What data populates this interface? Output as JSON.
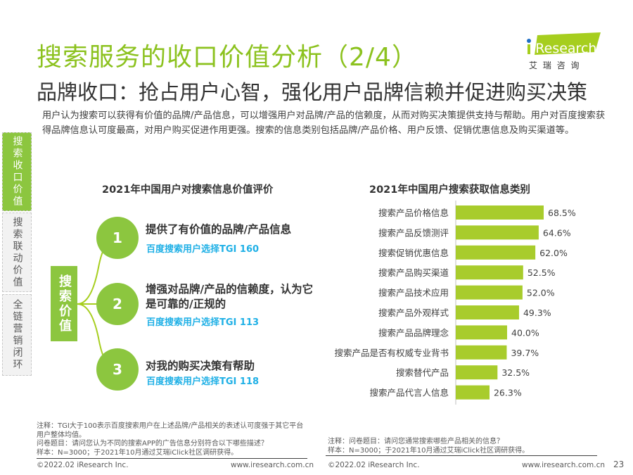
{
  "title": "搜索服务的收口价值分析（2/4）",
  "subtitle": "品牌收口：抢占用户心智，强化用户品牌信赖并促进购买决策",
  "intro": "用户认为搜索可以获得有价值的品牌/产品信息，可以增强用户对品牌/产品的信赖度，从而对购买决策提供支持与帮助。用户对百度搜索获得品牌信息认可度最高，对用户购买促进作用更强。搜索的信息类别包括品牌/产品价格、用户反馈、促销优惠信息及购买渠道等。",
  "logo": {
    "brand": "iResearch",
    "cn": "艾 瑞 咨 询"
  },
  "sidebar": {
    "items": [
      {
        "label": "搜索收口价值",
        "active": true
      },
      {
        "label": "搜索联动价值",
        "active": false
      },
      {
        "label": "全链营销闭环",
        "active": false
      }
    ]
  },
  "left": {
    "title": "2021年中国用户对搜索信息价值评价",
    "center_label": "搜索价值",
    "items": [
      {
        "num": "1",
        "text": "提供了有价值的品牌/产品信息",
        "tgi": "百度搜索用户选择TGI  160"
      },
      {
        "num": "2",
        "text": "增强对品牌/产品的信赖度，认为它是可靠的/正规的",
        "tgi": "百度搜索用户选择TGI  113"
      },
      {
        "num": "3",
        "text": "对我的购买决策有帮助",
        "tgi": "百度搜索用户选择TGI  118"
      }
    ],
    "notes": [
      "注释：TGI大于100表示百度搜索用户在上述品牌/产品相关的表述认可度强于其它平台用户整体均值。",
      "问卷题目：请问您认为不同的搜索APP的广告信息分别符合以下哪些描述？",
      "样本：N=3000；于2021年10月通过艾瑞iClick社区调研获得。"
    ],
    "footer_left": "©2022.02 iResearch Inc.",
    "footer_right": "www.iresearch.com.cn"
  },
  "right": {
    "notes": [
      "注释：问卷题目：请问您通常搜索哪些产品相关的信息？",
      "样本：N=3000；于2021年10月通过艾瑞iClick社区调研获得。"
    ],
    "footer_left": "©2022.02 iResearch Inc.",
    "footer_right": "www.iresearch.com.cn",
    "page_number": "23"
  },
  "colors": {
    "accent": "#8cc63f",
    "tgi": "#1fb0e6",
    "bar": "#a8cc2c"
  },
  "chart_data": {
    "type": "bar",
    "orientation": "horizontal",
    "title": "2021年中国用户搜索获取信息类别",
    "categories": [
      "搜索产品价格信息",
      "搜索产品反馈测评",
      "搜索促销优惠信息",
      "搜索产品购买渠道",
      "搜索产品技术应用",
      "搜索产品外观样式",
      "搜索产品品牌理念",
      "搜索产品是否有权威专业背书",
      "搜索替代产品",
      "搜索产品代言人信息"
    ],
    "values": [
      68.5,
      64.6,
      62.0,
      52.5,
      52.0,
      49.3,
      40.0,
      39.7,
      32.5,
      26.3
    ],
    "labels": [
      "68.5%",
      "64.6%",
      "62.0%",
      "52.5%",
      "52.0%",
      "49.3%",
      "40.0%",
      "39.7%",
      "32.5%",
      "26.3%"
    ],
    "unit": "%",
    "grid": false
  }
}
